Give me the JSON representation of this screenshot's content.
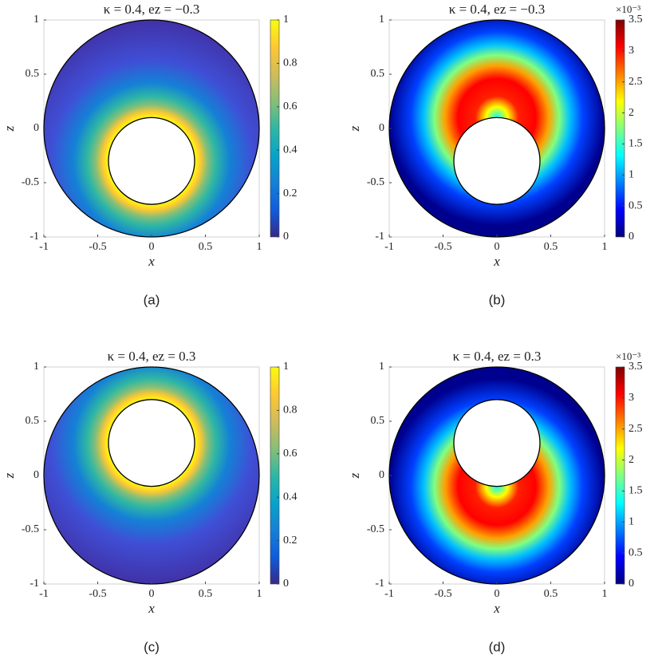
{
  "chart_data": [
    {
      "type": "contour",
      "title": "κ = 0.4, ez = −0.3",
      "xlabel": "x",
      "ylabel": "z",
      "caption": "(a)",
      "xlim": [
        -1,
        1
      ],
      "ylim": [
        -1,
        1
      ],
      "xticks": [
        -1,
        -0.5,
        0,
        0.5,
        1
      ],
      "yticks": [
        -1,
        -0.5,
        0,
        0.5,
        1
      ],
      "colormap": "parula",
      "clim": [
        0,
        1
      ],
      "cticks": [
        0,
        0.2,
        0.4,
        0.6,
        0.8,
        1
      ],
      "outer_radius": 1,
      "inner_radius": 0.4,
      "inner_center": [
        0,
        -0.3
      ]
    },
    {
      "type": "contour",
      "title": "κ = 0.4, ez = −0.3",
      "xlabel": "x",
      "ylabel": "z",
      "caption": "(b)",
      "xlim": [
        -1,
        1
      ],
      "ylim": [
        -1,
        1
      ],
      "xticks": [
        -1,
        -0.5,
        0,
        0.5,
        1
      ],
      "yticks": [
        -1,
        -0.5,
        0,
        0.5,
        1
      ],
      "colormap": "jet",
      "clim": [
        0,
        3.5
      ],
      "cticks": [
        0,
        0.5,
        1,
        1.5,
        2,
        2.5,
        3,
        3.5
      ],
      "colorbar_label": "×10⁻³",
      "outer_radius": 1,
      "inner_radius": 0.4,
      "inner_center": [
        0,
        -0.3
      ]
    },
    {
      "type": "contour",
      "title": "κ = 0.4, ez = 0.3",
      "xlabel": "x",
      "ylabel": "z",
      "caption": "(c)",
      "xlim": [
        -1,
        1
      ],
      "ylim": [
        -1,
        1
      ],
      "xticks": [
        -1,
        -0.5,
        0,
        0.5,
        1
      ],
      "yticks": [
        -1,
        -0.5,
        0,
        0.5,
        1
      ],
      "colormap": "parula",
      "clim": [
        0,
        1
      ],
      "cticks": [
        0,
        0.2,
        0.4,
        0.6,
        0.8,
        1
      ],
      "outer_radius": 1,
      "inner_radius": 0.4,
      "inner_center": [
        0,
        0.3
      ]
    },
    {
      "type": "contour",
      "title": "κ = 0.4, ez = 0.3",
      "xlabel": "x",
      "ylabel": "z",
      "caption": "(d)",
      "xlim": [
        -1,
        1
      ],
      "ylim": [
        -1,
        1
      ],
      "xticks": [
        -1,
        -0.5,
        0,
        0.5,
        1
      ],
      "yticks": [
        -1,
        -0.5,
        0,
        0.5,
        1
      ],
      "colormap": "jet",
      "clim": [
        0,
        3.5
      ],
      "cticks": [
        0,
        0.5,
        1,
        1.5,
        2,
        2.5,
        3,
        3.5
      ],
      "colorbar_label": "×10⁻³",
      "outer_radius": 1,
      "inner_radius": 0.4,
      "inner_center": [
        0,
        0.3
      ]
    }
  ]
}
